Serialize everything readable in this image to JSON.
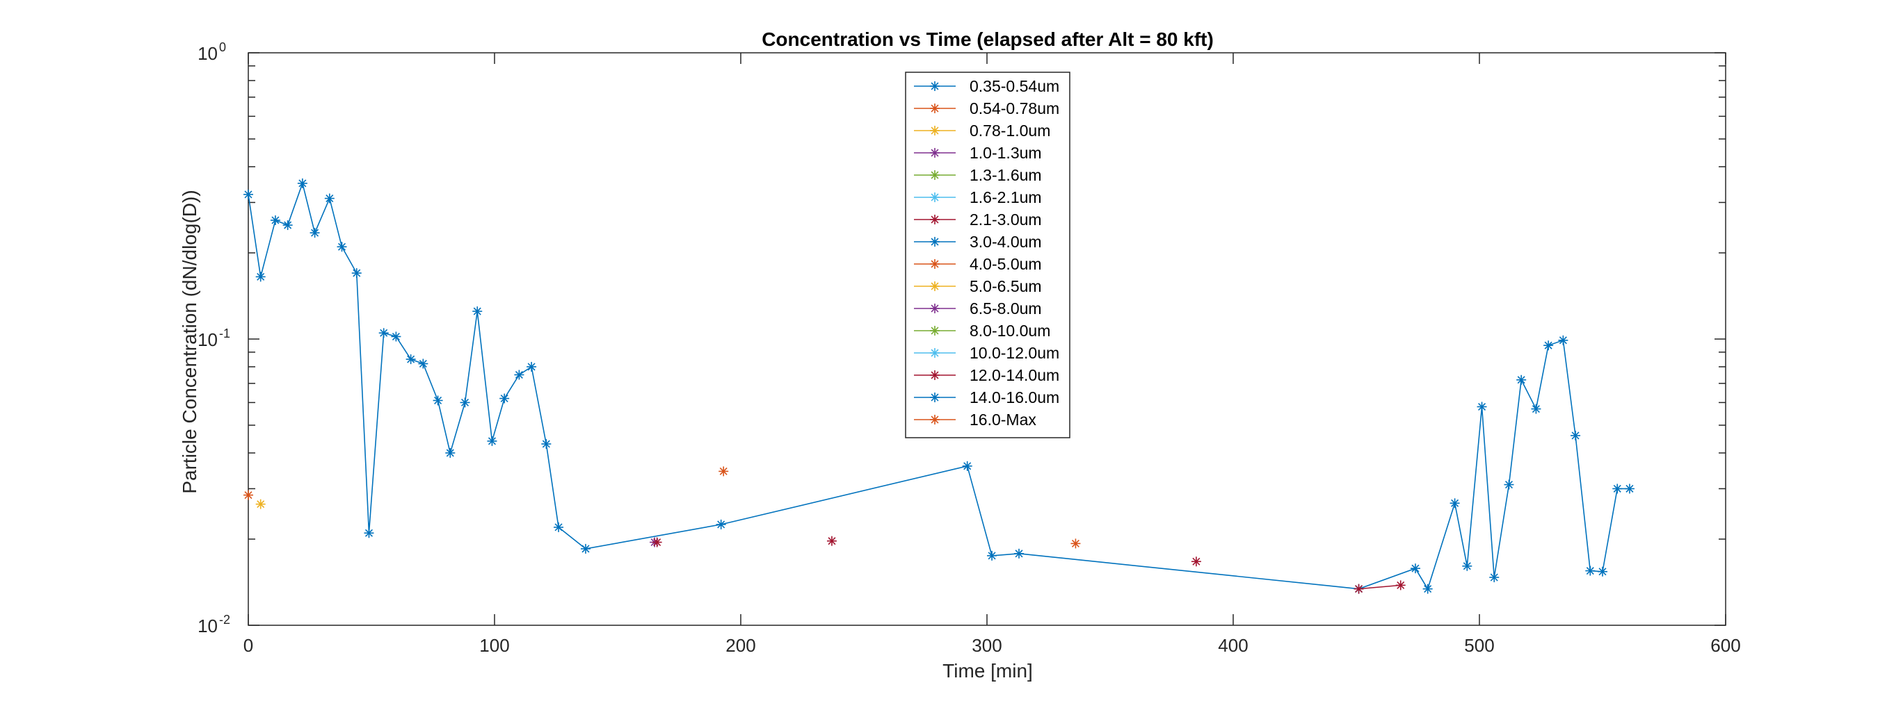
{
  "chart_data": {
    "type": "line",
    "title": "Concentration vs Time (elapsed after Alt = 80 kft)",
    "xlabel": "Time [min]",
    "ylabel": "Particle Concentration (dN/dlog(D))",
    "xlim": [
      0,
      600
    ],
    "ylim": [
      0.01,
      1
    ],
    "yscale": "log",
    "xticks": [
      0,
      100,
      200,
      300,
      400,
      500,
      600
    ],
    "xtick_labels": [
      "0",
      "100",
      "200",
      "300",
      "400",
      "500",
      "600"
    ],
    "ytick_labels": [
      {
        "value": 1,
        "base": "10",
        "exp": "0"
      },
      {
        "value": 0.1,
        "base": "10",
        "exp": "-1"
      },
      {
        "value": 0.01,
        "base": "10",
        "exp": "-2"
      }
    ],
    "grid": false,
    "legend_position": "top-center",
    "marker": "asterisk",
    "series": [
      {
        "name": "0.35-0.54um",
        "color": "#0072BD",
        "x": [
          0,
          5,
          11,
          16,
          22,
          27,
          33,
          38,
          44,
          49,
          55,
          60,
          66,
          71,
          77,
          82,
          88,
          93,
          99,
          104,
          110,
          115,
          121,
          126,
          137,
          192,
          292,
          302,
          313,
          451,
          474,
          479,
          490,
          495,
          501,
          506,
          512,
          517,
          523,
          528,
          534,
          539,
          545,
          550,
          556,
          561
        ],
        "y": [
          0.32,
          0.165,
          0.26,
          0.25,
          0.35,
          0.235,
          0.31,
          0.21,
          0.17,
          0.021,
          0.105,
          0.102,
          0.085,
          0.082,
          0.061,
          0.04,
          0.06,
          0.125,
          0.044,
          0.062,
          0.075,
          0.08,
          0.043,
          0.022,
          0.0185,
          0.0225,
          0.036,
          0.0175,
          0.0178,
          0.0134,
          0.0158,
          0.0134,
          0.0267,
          0.0161,
          0.058,
          0.0147,
          0.031,
          0.072,
          0.057,
          0.095,
          0.099,
          0.046,
          0.0155,
          0.0154,
          0.03,
          0.03
        ]
      },
      {
        "name": "0.54-0.78um",
        "color": "#D95319",
        "x": [
          0,
          193,
          336
        ],
        "y": [
          0.0285,
          0.0345,
          0.0193
        ]
      },
      {
        "name": "0.78-1.0um",
        "color": "#EDB120",
        "x": [
          5
        ],
        "y": [
          0.0265
        ]
      },
      {
        "name": "1.0-1.3um",
        "color": "#7E2F8E",
        "x": [
          165
        ],
        "y": [
          0.0195
        ]
      },
      {
        "name": "1.3-1.6um",
        "color": "#77AC30",
        "x": [],
        "y": []
      },
      {
        "name": "1.6-2.1um",
        "color": "#4DBEEE",
        "x": [],
        "y": []
      },
      {
        "name": "2.1-3.0um",
        "color": "#A2142F",
        "x": [
          166,
          237,
          385,
          451,
          468
        ],
        "y": [
          0.0195,
          0.0197,
          0.0167,
          0.0134,
          0.0138
        ]
      },
      {
        "name": "3.0-4.0um",
        "color": "#0072BD",
        "x": [],
        "y": []
      },
      {
        "name": "4.0-5.0um",
        "color": "#D95319",
        "x": [],
        "y": []
      },
      {
        "name": "5.0-6.5um",
        "color": "#EDB120",
        "x": [],
        "y": []
      },
      {
        "name": "6.5-8.0um",
        "color": "#7E2F8E",
        "x": [],
        "y": []
      },
      {
        "name": "8.0-10.0um",
        "color": "#77AC30",
        "x": [],
        "y": []
      },
      {
        "name": "10.0-12.0um",
        "color": "#4DBEEE",
        "x": [],
        "y": []
      },
      {
        "name": "12.0-14.0um",
        "color": "#A2142F",
        "x": [],
        "y": []
      },
      {
        "name": "14.0-16.0um",
        "color": "#0072BD",
        "x": [],
        "y": []
      },
      {
        "name": "16.0-Max",
        "color": "#D95319",
        "x": [],
        "y": []
      }
    ]
  }
}
